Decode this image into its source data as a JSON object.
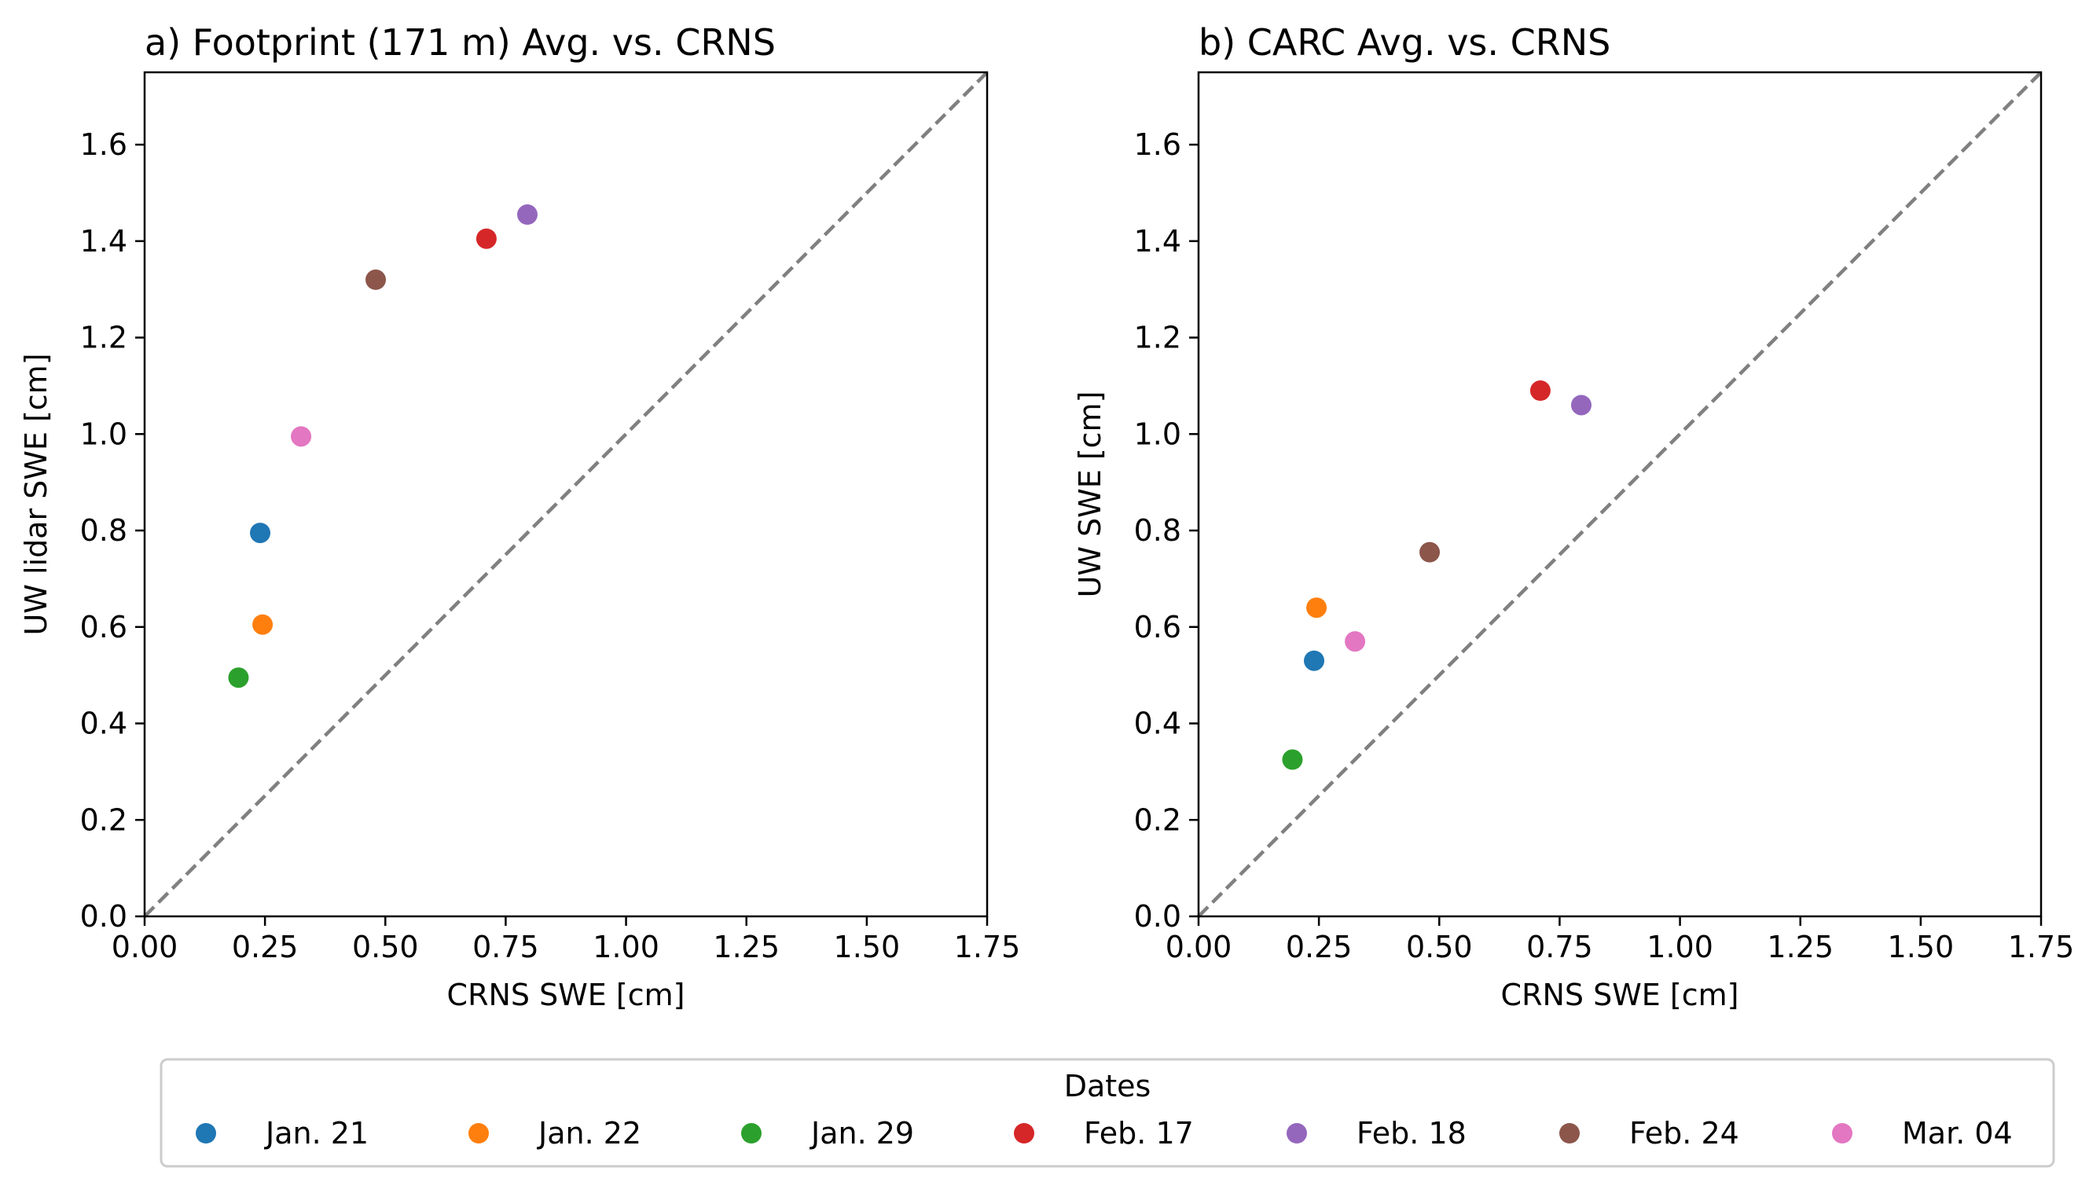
{
  "chart_data": [
    {
      "type": "scatter",
      "title": "a) Footprint (171 m) Avg. vs. CRNS",
      "xlabel": "CRNS SWE [cm]",
      "ylabel": "UW lidar SWE [cm]",
      "xlim": [
        0,
        1.75
      ],
      "ylim": [
        0,
        1.75
      ],
      "xticks": [
        "0.00",
        "0.25",
        "0.50",
        "0.75",
        "1.00",
        "1.25",
        "1.50",
        "1.75"
      ],
      "yticks": [
        "0.0",
        "0.2",
        "0.4",
        "0.6",
        "0.8",
        "1.0",
        "1.2",
        "1.4",
        "1.6"
      ],
      "reference_line": "1:1 dashed",
      "grid": false,
      "series": [
        {
          "name": "Jan. 21",
          "color": "#1f77b4",
          "x": 0.24,
          "y": 0.795
        },
        {
          "name": "Jan. 22",
          "color": "#ff7f0e",
          "x": 0.245,
          "y": 0.605
        },
        {
          "name": "Jan. 29",
          "color": "#2ca02c",
          "x": 0.195,
          "y": 0.495
        },
        {
          "name": "Feb. 17",
          "color": "#d62728",
          "x": 0.71,
          "y": 1.405
        },
        {
          "name": "Feb. 18",
          "color": "#9467bd",
          "x": 0.795,
          "y": 1.455
        },
        {
          "name": "Feb. 24",
          "color": "#8c564b",
          "x": 0.48,
          "y": 1.32
        },
        {
          "name": "Mar. 04",
          "color": "#e377c2",
          "x": 0.325,
          "y": 0.995
        }
      ]
    },
    {
      "type": "scatter",
      "title": "b) CARC Avg. vs. CRNS",
      "xlabel": "CRNS SWE [cm]",
      "ylabel": "UW SWE [cm]",
      "xlim": [
        0,
        1.75
      ],
      "ylim": [
        0,
        1.75
      ],
      "xticks": [
        "0.00",
        "0.25",
        "0.50",
        "0.75",
        "1.00",
        "1.25",
        "1.50",
        "1.75"
      ],
      "yticks": [
        "0.0",
        "0.2",
        "0.4",
        "0.6",
        "0.8",
        "1.0",
        "1.2",
        "1.4",
        "1.6"
      ],
      "reference_line": "1:1 dashed",
      "grid": false,
      "series": [
        {
          "name": "Jan. 21",
          "color": "#1f77b4",
          "x": 0.24,
          "y": 0.53
        },
        {
          "name": "Jan. 22",
          "color": "#ff7f0e",
          "x": 0.245,
          "y": 0.64
        },
        {
          "name": "Jan. 29",
          "color": "#2ca02c",
          "x": 0.195,
          "y": 0.325
        },
        {
          "name": "Feb. 17",
          "color": "#d62728",
          "x": 0.71,
          "y": 1.09
        },
        {
          "name": "Feb. 18",
          "color": "#9467bd",
          "x": 0.795,
          "y": 1.06
        },
        {
          "name": "Feb. 24",
          "color": "#8c564b",
          "x": 0.48,
          "y": 0.755
        },
        {
          "name": "Mar. 04",
          "color": "#e377c2",
          "x": 0.325,
          "y": 0.57
        }
      ]
    }
  ],
  "legend": {
    "title": "Dates",
    "placement": "bottom",
    "entries": [
      {
        "label": "Jan. 21",
        "color": "#1f77b4"
      },
      {
        "label": "Jan. 22",
        "color": "#ff7f0e"
      },
      {
        "label": "Jan. 29",
        "color": "#2ca02c"
      },
      {
        "label": "Feb. 17",
        "color": "#d62728"
      },
      {
        "label": "Feb. 18",
        "color": "#9467bd"
      },
      {
        "label": "Feb. 24",
        "color": "#8c564b"
      },
      {
        "label": "Mar. 04",
        "color": "#e377c2"
      }
    ]
  }
}
